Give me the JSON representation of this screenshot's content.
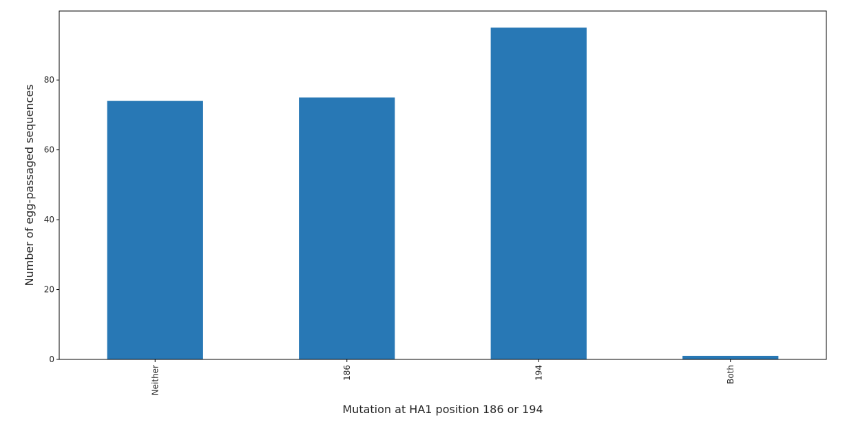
{
  "chart_data": {
    "type": "bar",
    "title": "",
    "xlabel": "Mutation at HA1 position 186 or 194",
    "ylabel": "Number of egg-passaged sequences",
    "categories": [
      "Neither",
      "186",
      "194",
      "Both"
    ],
    "values": [
      74,
      75,
      95,
      1
    ],
    "ylim": [
      0,
      99.75
    ],
    "yticks": [
      0,
      20,
      40,
      60,
      80
    ],
    "grid": false,
    "legend": "none",
    "bar_color": "#2878b5"
  }
}
